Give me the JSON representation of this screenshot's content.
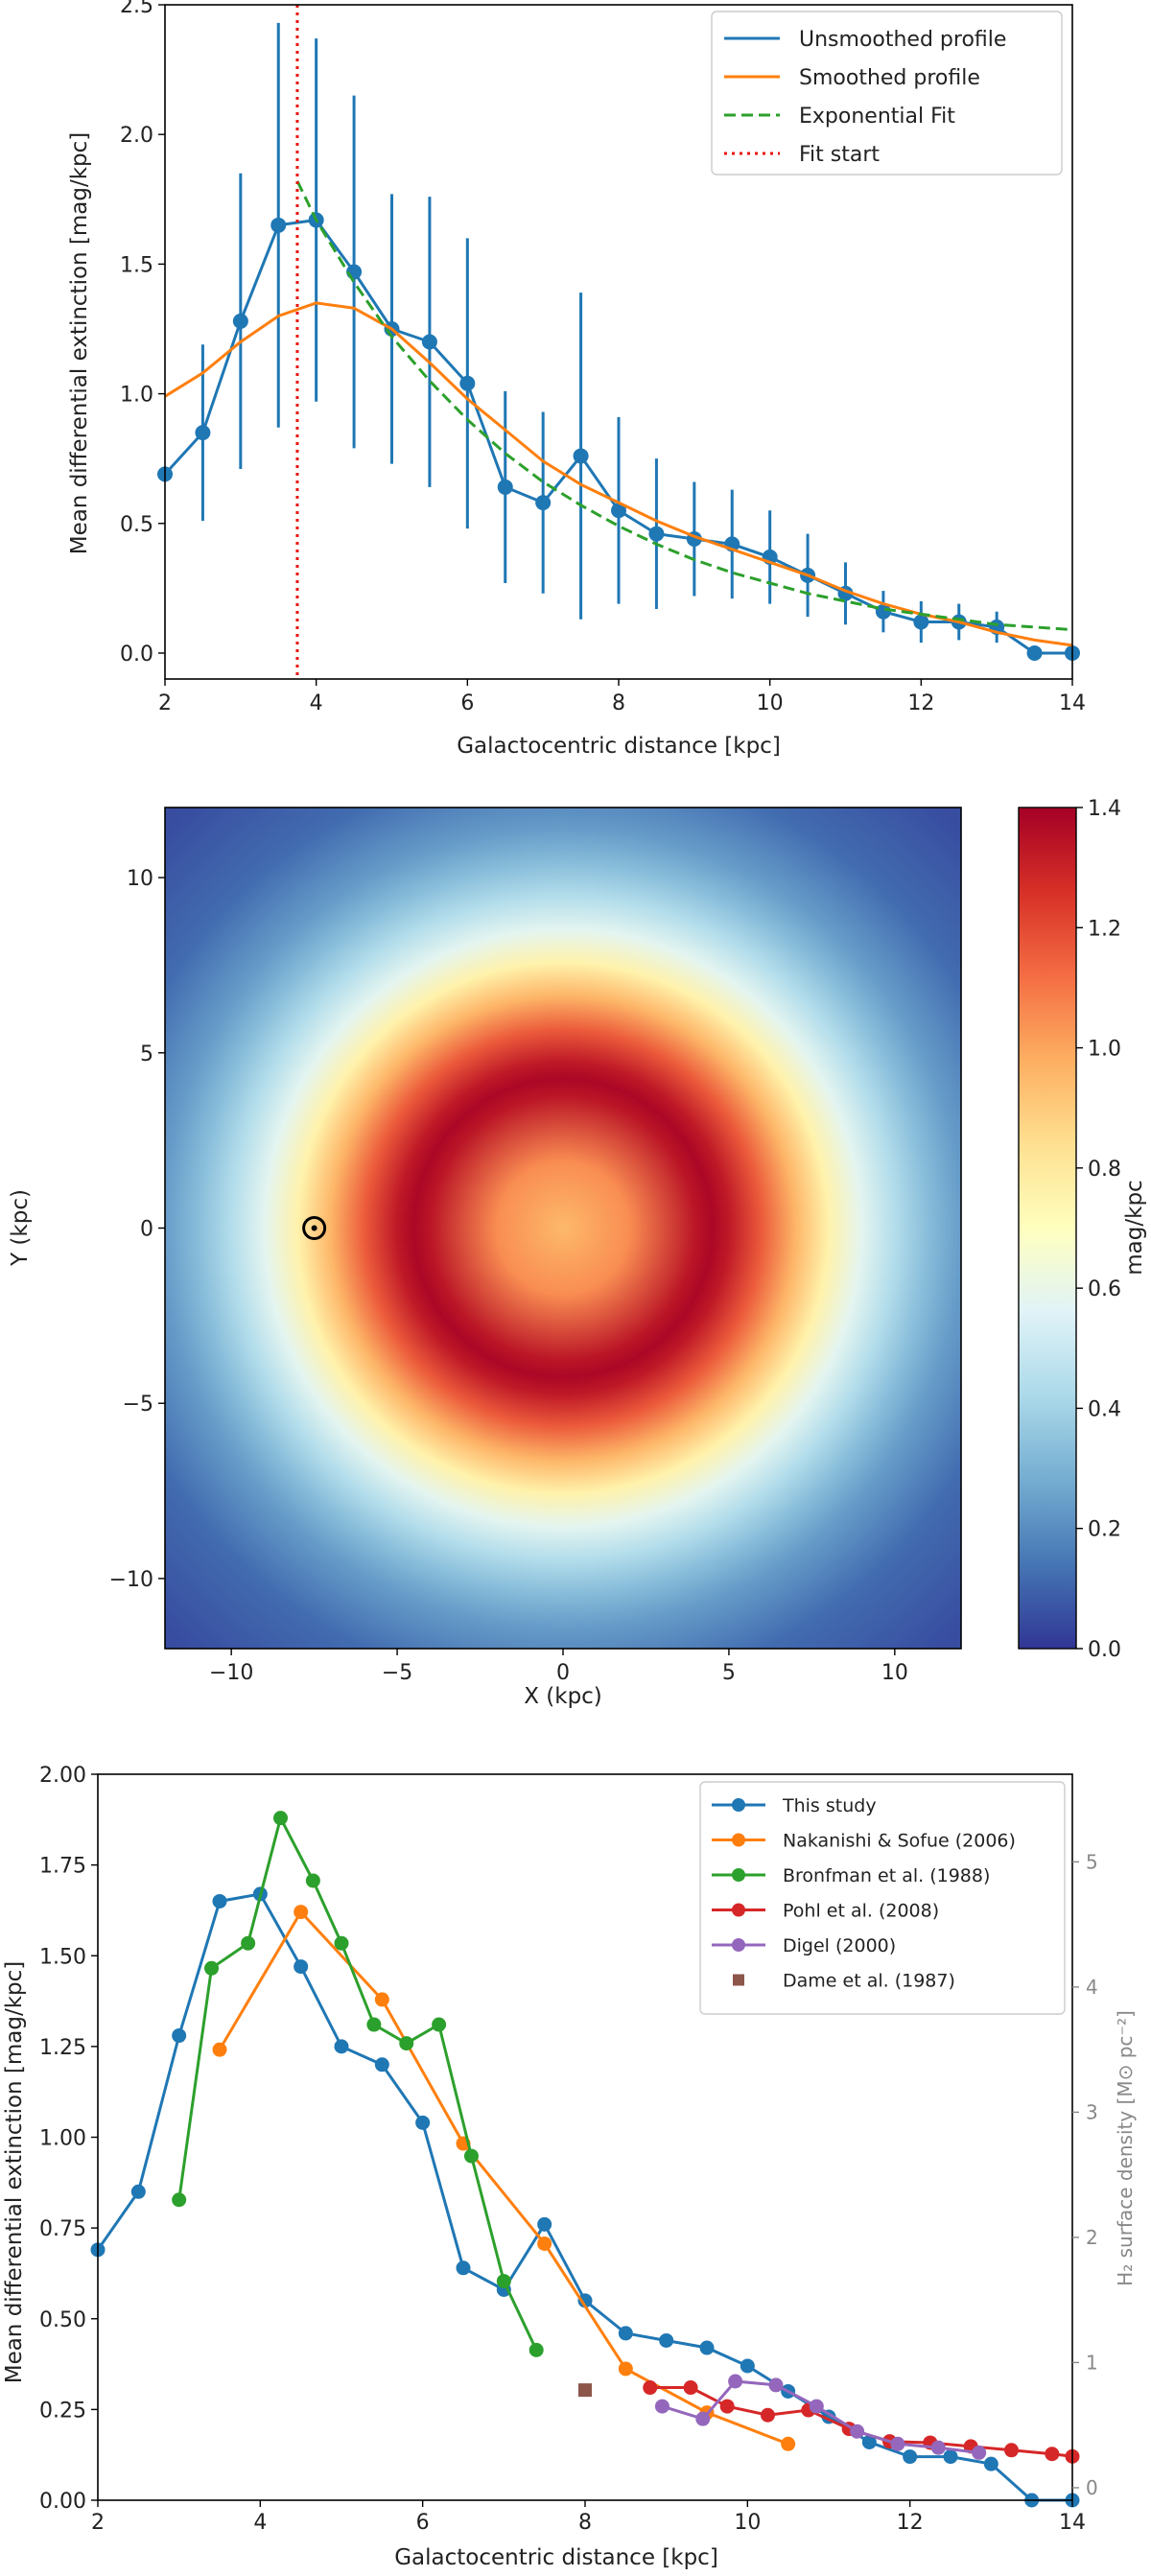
{
  "chart_data": [
    {
      "type": "line",
      "xlabel": "Galactocentric distance [kpc]",
      "ylabel": "Mean differential extinction [mag/kpc]",
      "xlim": [
        2,
        14
      ],
      "ylim": [
        -0.1,
        2.5
      ],
      "xticks": [
        "2",
        "4",
        "6",
        "8",
        "10",
        "12",
        "14"
      ],
      "yticks": [
        "0.0",
        "0.5",
        "1.0",
        "1.5",
        "2.0",
        "2.5"
      ],
      "legend_position": "top-right",
      "series": [
        {
          "name": "Unsmoothed profile",
          "color": "#1f77b4",
          "style": "line-markers-errorbars",
          "x": [
            2.0,
            2.5,
            3.0,
            3.5,
            4.0,
            4.5,
            5.0,
            5.5,
            6.0,
            6.5,
            7.0,
            7.5,
            8.0,
            8.5,
            9.0,
            9.5,
            10.0,
            10.5,
            11.0,
            11.5,
            12.0,
            12.5,
            13.0,
            13.5,
            14.0
          ],
          "values": [
            0.69,
            0.85,
            1.28,
            1.65,
            1.67,
            1.47,
            1.25,
            1.2,
            1.04,
            0.64,
            0.58,
            0.76,
            0.55,
            0.46,
            0.44,
            0.42,
            0.37,
            0.3,
            0.23,
            0.16,
            0.12,
            0.12,
            0.1,
            0.0,
            0.0
          ],
          "errors": [
            0.0,
            0.34,
            0.57,
            0.78,
            0.7,
            0.68,
            0.52,
            0.56,
            0.56,
            0.37,
            0.35,
            0.63,
            0.36,
            0.29,
            0.22,
            0.21,
            0.18,
            0.16,
            0.12,
            0.08,
            0.08,
            0.07,
            0.06,
            0.0,
            0.0
          ]
        },
        {
          "name": "Smoothed profile",
          "color": "#ff7f0e",
          "style": "line",
          "x": [
            2.0,
            2.5,
            3.0,
            3.5,
            4.0,
            4.5,
            5.0,
            5.5,
            6.0,
            6.5,
            7.0,
            7.5,
            8.0,
            8.5,
            9.0,
            9.5,
            10.0,
            10.5,
            11.0,
            11.5,
            12.0,
            12.5,
            13.0,
            13.5,
            14.0
          ],
          "values": [
            0.99,
            1.08,
            1.2,
            1.3,
            1.35,
            1.33,
            1.25,
            1.12,
            0.98,
            0.86,
            0.74,
            0.65,
            0.58,
            0.51,
            0.45,
            0.4,
            0.35,
            0.3,
            0.24,
            0.19,
            0.15,
            0.12,
            0.08,
            0.05,
            0.03
          ]
        },
        {
          "name": "Exponential Fit",
          "color": "#2ca02c",
          "style": "dashed",
          "x": [
            3.75,
            4.0,
            4.5,
            5.0,
            5.5,
            6.0,
            6.5,
            7.0,
            7.5,
            8.0,
            8.5,
            9.0,
            9.5,
            10.0,
            10.5,
            11.0,
            11.5,
            12.0,
            12.5,
            13.0,
            13.5,
            14.0
          ],
          "values": [
            1.82,
            1.67,
            1.43,
            1.22,
            1.05,
            0.9,
            0.77,
            0.66,
            0.57,
            0.49,
            0.42,
            0.36,
            0.31,
            0.27,
            0.23,
            0.2,
            0.17,
            0.15,
            0.13,
            0.11,
            0.1,
            0.09
          ]
        },
        {
          "name": "Fit start",
          "color": "#e8150f",
          "style": "dotted-vertical",
          "x": [
            3.75
          ]
        }
      ]
    },
    {
      "type": "heatmap",
      "xlabel": "X (kpc)",
      "ylabel": "Y (kpc)",
      "xlim": [
        -12,
        12
      ],
      "ylim": [
        -12,
        12
      ],
      "xticks": [
        "−10",
        "−5",
        "0",
        "5",
        "10"
      ],
      "yticks": [
        "10",
        "5",
        "0",
        "−5",
        "−10"
      ],
      "colorbar_label": "mag/kpc",
      "colorbar_range": [
        0,
        1.4
      ],
      "colorbar_ticks": [
        "1.4",
        "1.2",
        "1.0",
        "0.8",
        "0.6",
        "0.4",
        "0.2",
        "0.0"
      ],
      "colormap": "RdYlBu_r",
      "radial_profile_kpc": [
        0,
        2,
        4,
        4.5,
        5,
        6,
        7,
        8,
        9,
        10,
        11,
        12,
        14,
        17
      ],
      "radial_profile_values": [
        0.95,
        1.05,
        1.34,
        1.38,
        1.33,
        1.16,
        0.96,
        0.76,
        0.58,
        0.44,
        0.33,
        0.24,
        0.12,
        0.05
      ],
      "sun_marker": {
        "x": -7.5,
        "y": 0,
        "symbol": "⊙"
      }
    },
    {
      "type": "line",
      "xlabel": "Galactocentric distance [kpc]",
      "ylabel": "Mean differential extinction [mag/kpc]",
      "ylabel_right": "H₂ surface density [M⊙ pc⁻²]",
      "xlim": [
        2,
        14
      ],
      "ylim": [
        0,
        2.0
      ],
      "ylim_right": [
        -0.1,
        5.7
      ],
      "xticks": [
        "2",
        "4",
        "6",
        "8",
        "10",
        "12",
        "14"
      ],
      "yticks": [
        "0.00",
        "0.25",
        "0.50",
        "0.75",
        "1.00",
        "1.25",
        "1.50",
        "1.75",
        "2.00"
      ],
      "yticks_right": [
        "0",
        "1",
        "2",
        "3",
        "4",
        "5"
      ],
      "legend_position": "top-right",
      "series": [
        {
          "name": "This study",
          "color": "#1f77b4",
          "axis": "left",
          "x": [
            2.0,
            2.5,
            3.0,
            3.5,
            4.0,
            4.5,
            5.0,
            5.5,
            6.0,
            6.5,
            7.0,
            7.5,
            8.0,
            8.5,
            9.0,
            9.5,
            10.0,
            10.5,
            11.0,
            11.5,
            12.0,
            12.5,
            13.0,
            13.5,
            14.0
          ],
          "values": [
            0.69,
            0.85,
            1.28,
            1.65,
            1.67,
            1.47,
            1.25,
            1.2,
            1.04,
            0.64,
            0.58,
            0.76,
            0.55,
            0.46,
            0.44,
            0.42,
            0.37,
            0.3,
            0.23,
            0.16,
            0.12,
            0.12,
            0.1,
            0.0,
            0.0
          ]
        },
        {
          "name": "Nakanishi & Sofue (2006)",
          "color": "#ff7f0e",
          "axis": "right",
          "x": [
            3.5,
            4.5,
            5.5,
            6.5,
            7.5,
            8.5,
            9.5,
            10.5
          ],
          "values": [
            3.5,
            4.6,
            3.9,
            2.75,
            1.95,
            0.95,
            0.6,
            0.35
          ]
        },
        {
          "name": "Bronfman et al. (1988)",
          "color": "#2ca02c",
          "axis": "right",
          "x": [
            3.0,
            3.4,
            3.85,
            4.25,
            4.65,
            5.0,
            5.4,
            5.8,
            6.2,
            6.6,
            7.0,
            7.4
          ],
          "values": [
            2.3,
            4.15,
            4.35,
            5.35,
            4.85,
            4.35,
            3.7,
            3.55,
            3.7,
            2.65,
            1.65,
            1.1
          ]
        },
        {
          "name": "Pohl et al. (2008)",
          "color": "#d62728",
          "axis": "right",
          "x": [
            8.8,
            9.3,
            9.75,
            10.25,
            10.75,
            11.25,
            11.75,
            12.25,
            12.75,
            13.25,
            13.75,
            14.0
          ],
          "values": [
            0.8,
            0.8,
            0.65,
            0.58,
            0.62,
            0.47,
            0.37,
            0.36,
            0.33,
            0.3,
            0.27,
            0.25
          ]
        },
        {
          "name": "Digel (2000)",
          "color": "#9467bd",
          "axis": "right",
          "x": [
            8.95,
            9.45,
            9.85,
            10.35,
            10.85,
            11.35,
            11.85,
            12.35,
            12.85
          ],
          "values": [
            0.65,
            0.55,
            0.85,
            0.82,
            0.65,
            0.45,
            0.35,
            0.32,
            0.28
          ]
        },
        {
          "name": "Dame et al. (1987)",
          "color": "#8c564b",
          "axis": "right",
          "style": "square-marker",
          "x": [
            8.0
          ],
          "values": [
            0.78
          ]
        }
      ]
    }
  ]
}
